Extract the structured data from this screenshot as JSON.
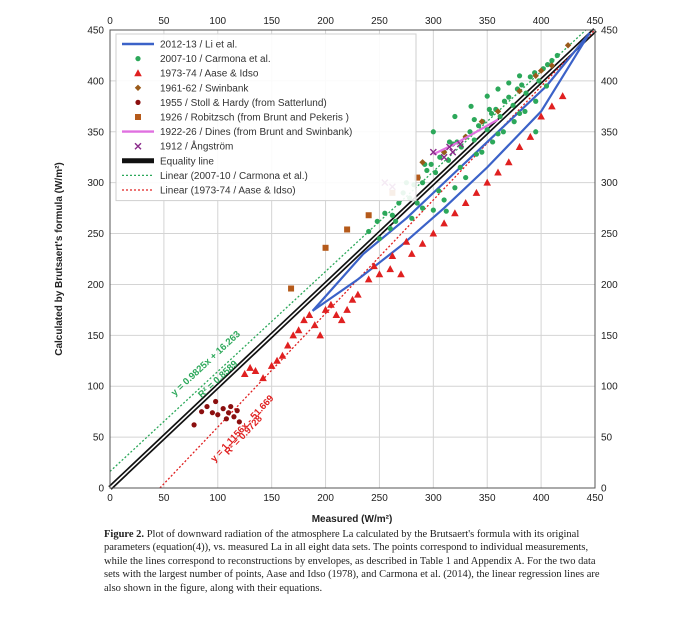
{
  "chart_data": {
    "type": "scatter",
    "xlabel": "Measured (W/m²)",
    "ylabel": "Calculated by Brutsaert's formula (W/m²)",
    "xlim": [
      0,
      450
    ],
    "ylim": [
      0,
      450
    ],
    "xticks": [
      "0",
      "50",
      "100",
      "150",
      "200",
      "250",
      "300",
      "350",
      "400",
      "450"
    ],
    "yticks": [
      "0",
      "50",
      "100",
      "150",
      "200",
      "250",
      "300",
      "350",
      "400",
      "450"
    ],
    "grid": true,
    "legend_position": "top-left",
    "series": [
      {
        "name": "2012-13 / Li et al.",
        "kind": "envelope-line",
        "color": "#3b62c8",
        "paths": [
          [
            [
              188,
              174
            ],
            [
              230,
              205
            ],
            [
              270,
              238
            ],
            [
              310,
              275
            ],
            [
              350,
              315
            ],
            [
              400,
              370
            ],
            [
              445,
              447
            ]
          ],
          [
            [
              188,
              174
            ],
            [
              235,
              230
            ],
            [
              275,
              265
            ],
            [
              320,
              310
            ],
            [
              360,
              350
            ],
            [
              405,
              395
            ],
            [
              445,
              447
            ]
          ]
        ]
      },
      {
        "name": "2007-10 / Carmona et al.",
        "kind": "points",
        "marker": "dot",
        "color": "#2ca85a",
        "points": [
          [
            240,
            252
          ],
          [
            248,
            262
          ],
          [
            255,
            270
          ],
          [
            262,
            268
          ],
          [
            268,
            280
          ],
          [
            272,
            290
          ],
          [
            278,
            285
          ],
          [
            282,
            298
          ],
          [
            286,
            305
          ],
          [
            290,
            300
          ],
          [
            294,
            312
          ],
          [
            298,
            318
          ],
          [
            302,
            310
          ],
          [
            306,
            325
          ],
          [
            310,
            330
          ],
          [
            314,
            322
          ],
          [
            318,
            338
          ],
          [
            322,
            340
          ],
          [
            326,
            335
          ],
          [
            330,
            345
          ],
          [
            334,
            350
          ],
          [
            338,
            342
          ],
          [
            342,
            356
          ],
          [
            346,
            360
          ],
          [
            350,
            352
          ],
          [
            354,
            368
          ],
          [
            358,
            372
          ],
          [
            362,
            365
          ],
          [
            366,
            380
          ],
          [
            370,
            384
          ],
          [
            374,
            376
          ],
          [
            378,
            392
          ],
          [
            382,
            396
          ],
          [
            386,
            388
          ],
          [
            390,
            404
          ],
          [
            394,
            408
          ],
          [
            398,
            400
          ],
          [
            402,
            412
          ],
          [
            406,
            416
          ],
          [
            410,
            420
          ],
          [
            300,
            273
          ],
          [
            310,
            283
          ],
          [
            320,
            295
          ],
          [
            330,
            305
          ],
          [
            280,
            265
          ],
          [
            290,
            275
          ],
          [
            260,
            255
          ],
          [
            345,
            330
          ],
          [
            355,
            340
          ],
          [
            365,
            350
          ],
          [
            375,
            360
          ],
          [
            385,
            370
          ],
          [
            395,
            380
          ],
          [
            300,
            350
          ],
          [
            320,
            365
          ],
          [
            335,
            375
          ],
          [
            350,
            385
          ],
          [
            360,
            392
          ],
          [
            370,
            398
          ],
          [
            380,
            405
          ],
          [
            312,
            272
          ],
          [
            395,
            350
          ],
          [
            250,
            245
          ],
          [
            265,
            262
          ],
          [
            285,
            280
          ],
          [
            305,
            292
          ],
          [
            325,
            315
          ],
          [
            340,
            328
          ],
          [
            360,
            348
          ],
          [
            380,
            368
          ],
          [
            405,
            395
          ],
          [
            415,
            425
          ],
          [
            275,
            300
          ],
          [
            292,
            318
          ],
          [
            315,
            340
          ],
          [
            338,
            362
          ],
          [
            352,
            372
          ]
        ]
      },
      {
        "name": "1973-74 / Aase & Idso",
        "kind": "points",
        "marker": "triangle",
        "color": "#e02020",
        "points": [
          [
            125,
            112
          ],
          [
            130,
            118
          ],
          [
            135,
            115
          ],
          [
            142,
            108
          ],
          [
            150,
            120
          ],
          [
            155,
            125
          ],
          [
            160,
            130
          ],
          [
            165,
            140
          ],
          [
            170,
            150
          ],
          [
            175,
            155
          ],
          [
            180,
            165
          ],
          [
            185,
            170
          ],
          [
            190,
            160
          ],
          [
            195,
            150
          ],
          [
            200,
            175
          ],
          [
            205,
            180
          ],
          [
            210,
            170
          ],
          [
            215,
            165
          ],
          [
            220,
            175
          ],
          [
            225,
            185
          ],
          [
            230,
            190
          ],
          [
            240,
            205
          ],
          [
            250,
            210
          ],
          [
            260,
            215
          ],
          [
            270,
            210
          ],
          [
            280,
            230
          ],
          [
            290,
            240
          ],
          [
            300,
            250
          ],
          [
            310,
            260
          ],
          [
            320,
            270
          ],
          [
            330,
            280
          ],
          [
            340,
            290
          ],
          [
            350,
            300
          ],
          [
            360,
            310
          ],
          [
            370,
            320
          ],
          [
            380,
            335
          ],
          [
            390,
            345
          ],
          [
            400,
            365
          ],
          [
            410,
            375
          ],
          [
            420,
            385
          ],
          [
            275,
            242
          ],
          [
            262,
            228
          ],
          [
            245,
            218
          ]
        ]
      },
      {
        "name": "1961-62 / Swinbank",
        "kind": "points",
        "marker": "diamond",
        "color": "#9a5a1a",
        "points": [
          [
            290,
            320
          ],
          [
            310,
            330
          ],
          [
            330,
            345
          ],
          [
            345,
            360
          ],
          [
            360,
            370
          ],
          [
            380,
            390
          ],
          [
            395,
            405
          ],
          [
            410,
            415
          ],
          [
            425,
            435
          ],
          [
            400,
            410
          ]
        ]
      },
      {
        "name": "1955 / Stoll & Hardy (from Satterlund)",
        "kind": "points",
        "marker": "dot",
        "color": "#8b0f0f",
        "points": [
          [
            78,
            62
          ],
          [
            85,
            75
          ],
          [
            90,
            80
          ],
          [
            95,
            74
          ],
          [
            98,
            85
          ],
          [
            100,
            72
          ],
          [
            105,
            78
          ],
          [
            108,
            68
          ],
          [
            110,
            74
          ],
          [
            112,
            80
          ],
          [
            115,
            70
          ],
          [
            118,
            76
          ],
          [
            120,
            65
          ]
        ]
      },
      {
        "name": "1926 / Robitzsch (from Brunt and Pekeris )",
        "kind": "points",
        "marker": "square",
        "color": "#b55a1a",
        "points": [
          [
            168,
            196
          ],
          [
            200,
            236
          ],
          [
            220,
            254
          ],
          [
            240,
            268
          ],
          [
            262,
            290
          ],
          [
            285,
            305
          ]
        ]
      },
      {
        "name": "1922-26 / Dines (from Brunt and Swinbank)",
        "kind": "envelope-line",
        "color": "#e070e0",
        "paths": [
          [
            [
              300,
              328
            ],
            [
              320,
              338
            ],
            [
              340,
              350
            ],
            [
              360,
              362
            ]
          ]
        ]
      },
      {
        "name": "1912 / Ångström",
        "kind": "points",
        "marker": "x",
        "color": "#8a2a8a",
        "points": [
          [
            255,
            300
          ],
          [
            262,
            296
          ],
          [
            300,
            330
          ],
          [
            310,
            325
          ],
          [
            315,
            335
          ],
          [
            318,
            330
          ],
          [
            325,
            338
          ]
        ]
      },
      {
        "name": "Equality line",
        "kind": "line",
        "color": "#111111",
        "points": [
          [
            0,
            0
          ],
          [
            450,
            450
          ]
        ]
      },
      {
        "name": "Linear (2007-10 / Carmona et al.)",
        "kind": "regression",
        "color": "#2ca85a",
        "slope": 0.9825,
        "intercept": 16.263
      },
      {
        "name": "Linear (1973-74 / Aase & Idso)",
        "kind": "regression",
        "color": "#e02020",
        "slope": 1.1156,
        "intercept": -51.669
      }
    ],
    "annotations": [
      {
        "text": "y = 0.9825x + 16.263",
        "color": "#2ca85a",
        "x": 60,
        "y": 90,
        "angle": -43
      },
      {
        "text": "R² = 0.8589",
        "color": "#2ca85a",
        "x": 85,
        "y": 88,
        "angle": -43
      },
      {
        "text": "y = 1.1156x - 51.669",
        "color": "#e02020",
        "x": 97,
        "y": 25,
        "angle": -47
      },
      {
        "text": "R² = 0.9728",
        "color": "#e02020",
        "x": 110,
        "y": 32,
        "angle": -47
      }
    ]
  },
  "caption": {
    "label": "Figure 2.",
    "text": "Plot of downward radiation of the atmosphere La calculated by the Brutsaert's formula with its original parameters (equation(4)), vs. measured La in all eight data sets. The points correspond to individual measurements, while the lines correspond to reconstructions by envelopes, as described in Table 1 and Appendix A. For the two data sets with the largest number of points, Aase and Idso (1978), and Carmona et al. (2014), the linear regression lines are also shown in the figure, along with their equations."
  }
}
